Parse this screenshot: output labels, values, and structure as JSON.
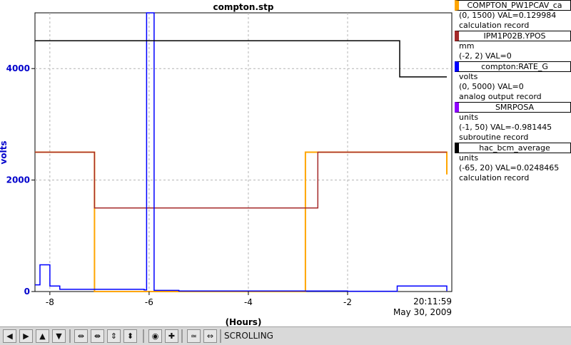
{
  "chart_data": {
    "type": "line",
    "title": "compton.stp",
    "xlabel": "(Hours)",
    "ylabel": "volts",
    "xlim": [
      -8.3,
      0.1
    ],
    "ylim": [
      0,
      5000
    ],
    "x_ticks": [
      -8,
      -6,
      -4,
      -2
    ],
    "y_ticks": [
      0,
      2000,
      4000
    ],
    "grid": true,
    "timestamp_time": "20:11:59",
    "timestamp_date": "May 30, 2009",
    "series": [
      {
        "name": "COMPTON_PW1PCAV_ca",
        "color": "#ffa500",
        "x": [
          -8.3,
          -7.15,
          -7.1,
          -2.9,
          -2.85,
          0.0
        ],
        "y": [
          2500,
          2500,
          0,
          0,
          2500,
          2100
        ]
      },
      {
        "name": "IPM1P02B.YPOS",
        "color": "#a52a2a",
        "x": [
          -8.3,
          -7.2,
          -7.1,
          -5.4,
          -2.9,
          -2.6,
          -2.6,
          0.0
        ],
        "y": [
          2500,
          2500,
          1500,
          1500,
          1500,
          2500,
          2500,
          2500
        ]
      },
      {
        "name": "compton:RATE_G",
        "color": "#0000ff",
        "x": [
          -8.3,
          -8.2,
          -8.0,
          -7.8,
          -6.1,
          -6.05,
          -6.0,
          -5.9,
          -5.4,
          -2.0,
          -1.0,
          0.0
        ],
        "y": [
          120,
          480,
          100,
          40,
          30,
          5000,
          5000,
          20,
          10,
          5,
          100,
          10
        ]
      },
      {
        "name": "SMRPOSA",
        "color": "#8f00ff",
        "x": [],
        "y": []
      },
      {
        "name": "hac_bcm_average",
        "color": "#000000",
        "x": [
          -8.3,
          -7.2,
          -6.2,
          -4.5,
          -3.2,
          -2.5,
          -1.0,
          -0.95,
          0.0
        ],
        "y": [
          4500,
          4500,
          4500,
          4500,
          4500,
          4500,
          4500,
          3850,
          3850
        ]
      }
    ]
  },
  "legend": [
    {
      "name": "COMPTON_PW1PCAV_ca",
      "color": "#ffa500",
      "line1": "(0, 1500) VAL=0.129984",
      "line2": "calculation record"
    },
    {
      "name": "IPM1P02B.YPOS",
      "color": "#a52a2a",
      "line1": "mm",
      "line2": "(-2, 2) VAL=0"
    },
    {
      "name": "compton:RATE_G",
      "color": "#0000ff",
      "line1": "volts",
      "line2": "(0, 5000) VAL=0",
      "line3": "analog output record"
    },
    {
      "name": "SMRPOSA",
      "color": "#8f00ff",
      "line1": "units",
      "line2": "(-1, 50) VAL=-0.981445",
      "line3": "subroutine record"
    },
    {
      "name": "hac_bcm_average",
      "color": "#000000",
      "line1": "units",
      "line2": "(-65, 20) VAL=0.0248465",
      "line3": "calculation record"
    }
  ],
  "toolbar": {
    "status": "SCROLLING",
    "icons": [
      "arrow-left-icon",
      "arrow-right-icon",
      "arrow-up-icon",
      "arrow-down-icon",
      "expand-horizontal-icon",
      "compress-horizontal-icon",
      "expand-vertical-icon",
      "compress-vertical-icon",
      "zoom-icon",
      "add-icon",
      "graph-mode-icon",
      "scroll-mode-icon"
    ],
    "glyphs": [
      "◀",
      "▶",
      "▲",
      "▼",
      "⇹",
      "⇼",
      "⇕",
      "⬍",
      "◉",
      "✚",
      "≃",
      "⇔"
    ]
  }
}
